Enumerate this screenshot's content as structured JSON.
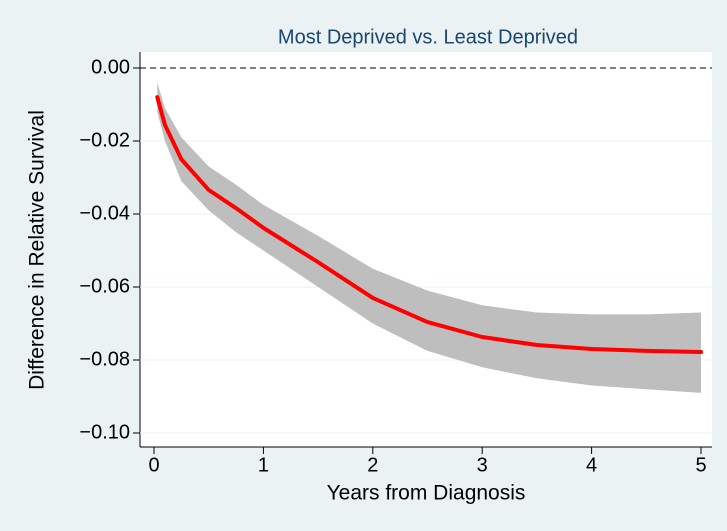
{
  "chart_data": {
    "type": "line",
    "title": "Most Deprived vs. Least Deprived",
    "xlabel": "Years from Diagnosis",
    "ylabel": "Difference in Relative Survival",
    "x": [
      0.03,
      0.1,
      0.25,
      0.5,
      0.75,
      1,
      1.5,
      2,
      2.5,
      3,
      3.5,
      4,
      4.5,
      5
    ],
    "estimate": {
      "color": "#ff0000",
      "values": [
        -0.008,
        -0.0156,
        -0.025,
        -0.0334,
        -0.0384,
        -0.0438,
        -0.0532,
        -0.063,
        -0.0696,
        -0.0737,
        -0.0759,
        -0.077,
        -0.0775,
        -0.0778
      ]
    },
    "ci": {
      "color": "#bebebe",
      "upper": [
        -0.004,
        -0.011,
        -0.019,
        -0.027,
        -0.032,
        -0.0375,
        -0.046,
        -0.055,
        -0.061,
        -0.065,
        -0.067,
        -0.0675,
        -0.0675,
        -0.067
      ],
      "lower": [
        -0.012,
        -0.02,
        -0.031,
        -0.039,
        -0.045,
        -0.05,
        -0.06,
        -0.07,
        -0.0775,
        -0.082,
        -0.085,
        -0.087,
        -0.088,
        -0.089
      ]
    },
    "yline": 0,
    "xlim": [
      0,
      5
    ],
    "xticks": [
      0,
      1,
      2,
      3,
      4,
      5
    ],
    "ylim": [
      0,
      -0.1
    ],
    "yticks": [
      {
        "value": 0,
        "label": "0.00"
      },
      {
        "value": -0.02,
        "label": "−0.02"
      },
      {
        "value": -0.04,
        "label": "−0.04"
      },
      {
        "value": -0.06,
        "label": "−0.06"
      },
      {
        "value": -0.08,
        "label": "−0.08"
      },
      {
        "value": -0.1,
        "label": "−0.10"
      }
    ],
    "grid": true
  }
}
